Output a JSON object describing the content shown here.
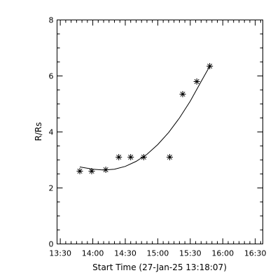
{
  "chart_data": {
    "type": "scatter",
    "xlabel": "Start Time (27-Jan-25 13:18:07)",
    "ylabel": "R/Rs",
    "xlim": [
      "13:27",
      "16:37"
    ],
    "ylim": [
      0,
      8
    ],
    "x_tick_labels": [
      "13:30",
      "14:00",
      "14:30",
      "15:00",
      "15:30",
      "16:00",
      "16:30"
    ],
    "y_tick_labels": [
      "0",
      "2",
      "4",
      "6",
      "8"
    ],
    "grid": false,
    "legend": "none",
    "series": [
      {
        "marker": "asterisk",
        "x": [
          "13:48",
          "13:59",
          "14:12",
          "14:24",
          "14:35",
          "14:47",
          "15:11",
          "15:23",
          "15:36",
          "15:48"
        ],
        "y": [
          2.6,
          2.6,
          2.65,
          3.1,
          3.1,
          3.1,
          3.1,
          5.35,
          5.8,
          6.35
        ]
      },
      {
        "type": "line",
        "style": "fitted curve",
        "x": [
          "13:48",
          "14:00",
          "14:10",
          "14:20",
          "14:30",
          "14:40",
          "14:50",
          "15:00",
          "15:10",
          "15:20",
          "15:30",
          "15:40",
          "15:48"
        ],
        "y": [
          2.75,
          2.67,
          2.64,
          2.67,
          2.77,
          2.95,
          3.2,
          3.55,
          3.98,
          4.5,
          5.1,
          5.8,
          6.35
        ]
      }
    ]
  }
}
